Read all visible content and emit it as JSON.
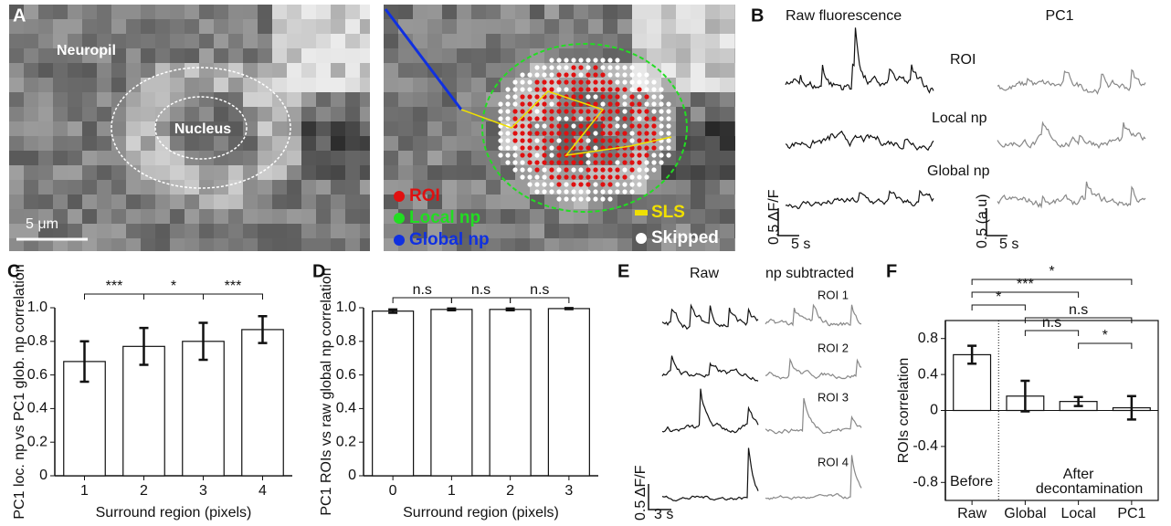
{
  "panel_labels": [
    "A",
    "B",
    "C",
    "D",
    "E",
    "F"
  ],
  "panel_a": {
    "labels": [
      "Neuropil",
      "Nucleus"
    ],
    "scale_bar": "5 μm",
    "legend": [
      {
        "label": "ROI",
        "color": "#e01010"
      },
      {
        "label": "Local np",
        "color": "#22dd22"
      },
      {
        "label": "Global np",
        "color": "#1030e0"
      },
      {
        "label": "SLS",
        "color": "#f0e000"
      },
      {
        "label": "Skipped",
        "color": "#ffffff"
      }
    ]
  },
  "panel_b": {
    "columns": [
      "Raw fluorescence",
      "PC1"
    ],
    "rows": [
      "ROI",
      "Local np",
      "Global np"
    ],
    "scale_left": [
      "0.5 ΔF/F",
      "5 s"
    ],
    "scale_right": [
      "0.5 (a.u)",
      "5 s"
    ]
  },
  "panel_e": {
    "columns": [
      "Raw",
      "np subtracted"
    ],
    "rows": [
      "ROI 1",
      "ROI 2",
      "ROI 3",
      "ROI 4"
    ],
    "scale": [
      "0.5 ΔF/F",
      "3 s"
    ]
  },
  "chart_data": [
    {
      "type": "bar",
      "categories": [
        "1",
        "2",
        "3",
        "4"
      ],
      "values": [
        0.68,
        0.77,
        0.8,
        0.87
      ],
      "errors": [
        0.12,
        0.11,
        0.11,
        0.08
      ],
      "ylim": [
        0,
        1.0
      ],
      "yticks": [
        0,
        0.2,
        0.4,
        0.6,
        0.8,
        {
          "value": 1,
          "label": "1.0"
        }
      ],
      "ylabel": "PC1 loc. np vs PC1 glob. np correlation",
      "xlabel": "Surround region (pixels)",
      "brackets": [
        {
          "between": [
            "1",
            "2"
          ],
          "label": "***"
        },
        {
          "between": [
            "2",
            "3"
          ],
          "label": "*"
        },
        {
          "between": [
            "3",
            "4"
          ],
          "label": "***"
        }
      ]
    },
    {
      "type": "bar",
      "categories": [
        "0",
        "1",
        "2",
        "3"
      ],
      "values": [
        0.98,
        0.99,
        0.99,
        0.995
      ],
      "errors": [
        0.01,
        0.005,
        0.005,
        0.003
      ],
      "ylim": [
        0,
        1.0
      ],
      "yticks": [
        0,
        0.2,
        0.4,
        0.6,
        0.8,
        {
          "value": 1,
          "label": "1.0"
        }
      ],
      "ylabel": "PC1 ROIs vs raw global np correlation",
      "xlabel": "Surround region (pixels)",
      "brackets": [
        {
          "between": [
            "0",
            "1"
          ],
          "label": "n.s"
        },
        {
          "between": [
            "1",
            "2"
          ],
          "label": "n.s"
        },
        {
          "between": [
            "2",
            "3"
          ],
          "label": "n.s"
        }
      ]
    },
    {
      "type": "bar",
      "categories": [
        "Raw",
        "Global",
        "Local",
        "PC1"
      ],
      "values": [
        0.62,
        0.16,
        0.1,
        0.03
      ],
      "errors": [
        0.1,
        0.17,
        0.05,
        0.13
      ],
      "ylim": [
        -1,
        1
      ],
      "yticks": [
        -0.8,
        -0.4,
        0,
        0.4,
        0.8
      ],
      "ylabel": "ROIs correlation",
      "annotations": [
        "Before",
        "After",
        "decontamination"
      ],
      "brackets": [
        {
          "between": [
            "Raw",
            "PC1"
          ],
          "label": "*"
        },
        {
          "between": [
            "Raw",
            "Local"
          ],
          "label": "***"
        },
        {
          "between": [
            "Raw",
            "Global"
          ],
          "label": "*"
        },
        {
          "between": [
            "Global",
            "PC1"
          ],
          "label": "n.s"
        },
        {
          "between": [
            "Global",
            "Local"
          ],
          "label": "n.s"
        },
        {
          "between": [
            "Local",
            "PC1"
          ],
          "label": "*"
        }
      ]
    }
  ]
}
